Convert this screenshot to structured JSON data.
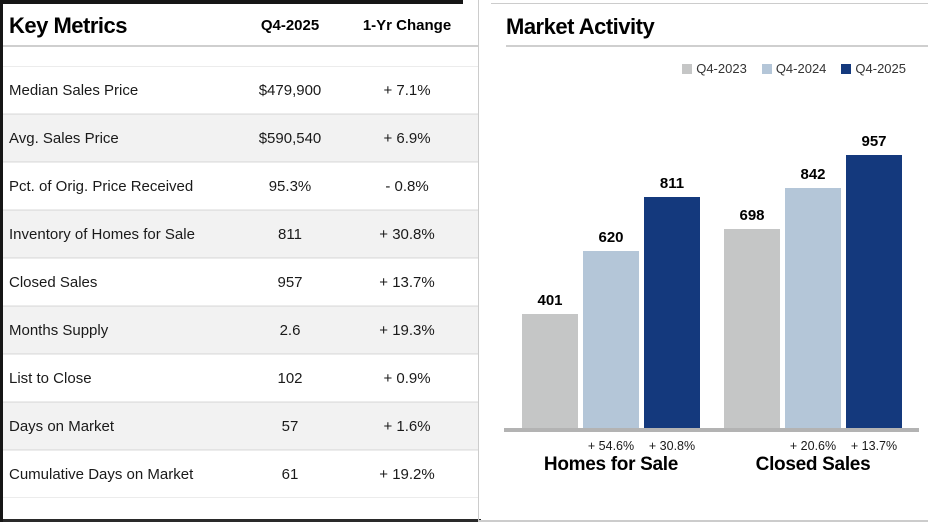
{
  "table": {
    "title": "Key Metrics",
    "col_value": "Q4-2025",
    "col_change": "1-Yr Change",
    "rows": [
      {
        "label": "Median Sales Price",
        "value": "$479,900",
        "change": "+ 7.1%"
      },
      {
        "label": "Avg. Sales Price",
        "value": "$590,540",
        "change": "+ 6.9%"
      },
      {
        "label": "Pct. of Orig. Price Received",
        "value": "95.3%",
        "change": "- 0.8%"
      },
      {
        "label": "Inventory of Homes for Sale",
        "value": "811",
        "change": "+ 30.8%"
      },
      {
        "label": "Closed Sales",
        "value": "957",
        "change": "+ 13.7%"
      },
      {
        "label": "Months Supply",
        "value": "2.6",
        "change": "+ 19.3%"
      },
      {
        "label": "List to Close",
        "value": "102",
        "change": "+ 0.9%"
      },
      {
        "label": "Days on Market",
        "value": "57",
        "change": "+ 1.6%"
      },
      {
        "label": "Cumulative Days on Market",
        "value": "61",
        "change": "+ 19.2%"
      }
    ]
  },
  "chart": {
    "title": "Market Activity"
  },
  "chart_data": {
    "type": "bar",
    "title": "Market Activity",
    "categories": [
      "Homes for Sale",
      "Closed Sales"
    ],
    "series": [
      {
        "name": "Q4-2023",
        "color": "#c5c6c6",
        "values": [
          401,
          698
        ]
      },
      {
        "name": "Q4-2024",
        "color": "#b4c6d8",
        "values": [
          620,
          842
        ]
      },
      {
        "name": "Q4-2025",
        "color": "#14397d",
        "values": [
          811,
          957
        ]
      }
    ],
    "pct_changes": [
      {
        "category": "Homes for Sale",
        "vs_2023": "+ 54.6%",
        "vs_2024": "+ 30.8%"
      },
      {
        "category": "Closed Sales",
        "vs_2023": "+ 20.6%",
        "vs_2024": "+ 13.7%"
      }
    ],
    "ylim": [
      0,
      1000
    ],
    "grid": false,
    "legend_position": "top-right"
  }
}
